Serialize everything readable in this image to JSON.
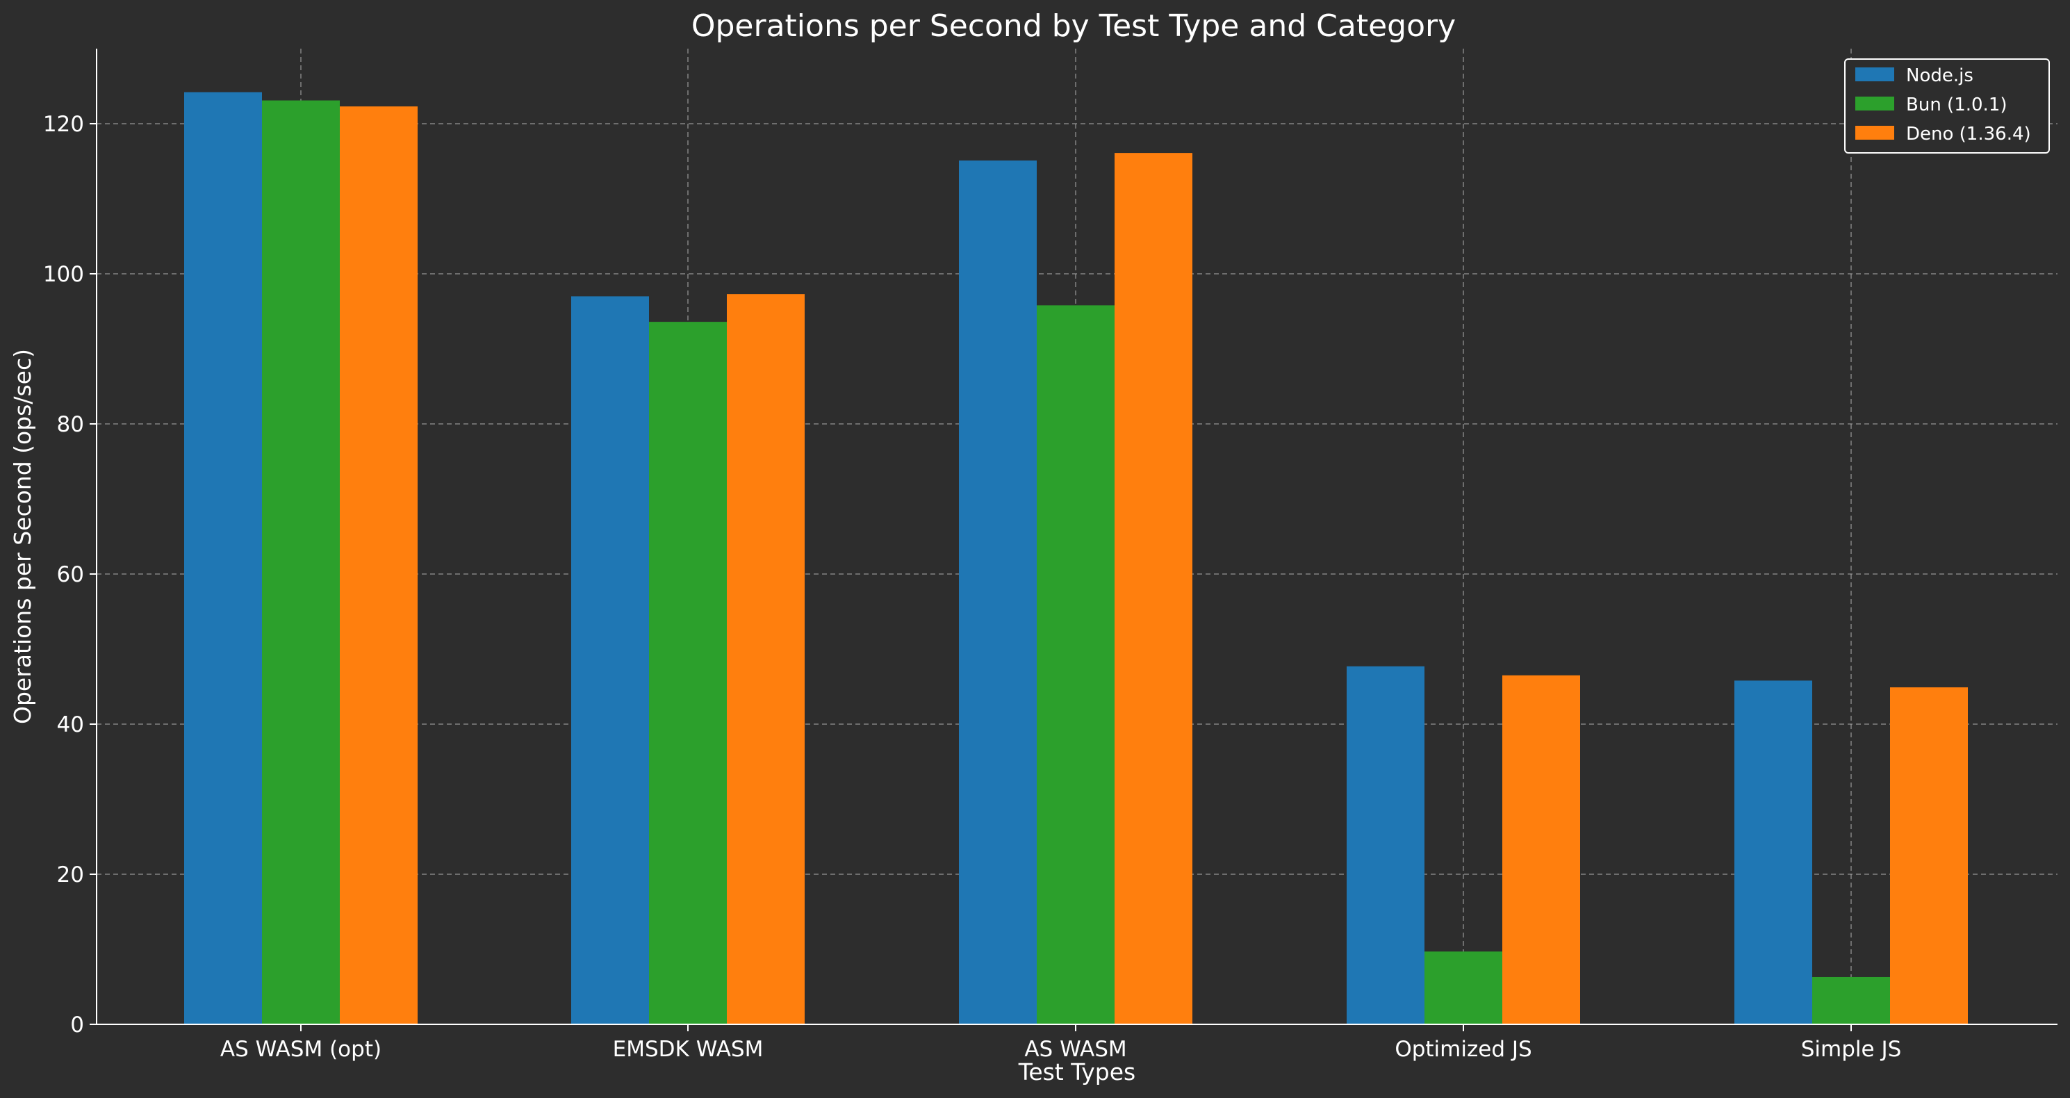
{
  "chart_data": {
    "type": "bar",
    "title": "Operations per Second by Test Type and Category",
    "xlabel": "Test Types",
    "ylabel": "Operations per Second (ops/sec)",
    "categories": [
      "AS WASM (opt)",
      "EMSDK WASM",
      "AS WASM",
      "Optimized JS",
      "Simple JS"
    ],
    "series": [
      {
        "name": "Node.js",
        "color": "#1f77b4",
        "values": [
          124.2,
          97.0,
          115.1,
          47.7,
          45.8
        ]
      },
      {
        "name": "Bun (1.0.1)",
        "color": "#2ca02c",
        "values": [
          123.1,
          93.6,
          95.8,
          9.7,
          6.3
        ]
      },
      {
        "name": "Deno (1.36.4)",
        "color": "#ff7f0e",
        "values": [
          122.3,
          97.3,
          116.1,
          46.5,
          44.9
        ]
      }
    ],
    "ylim": [
      0,
      130
    ],
    "yticks": [
      0,
      20,
      40,
      60,
      80,
      100,
      120
    ],
    "grid": true,
    "legend_position": "top-right"
  }
}
